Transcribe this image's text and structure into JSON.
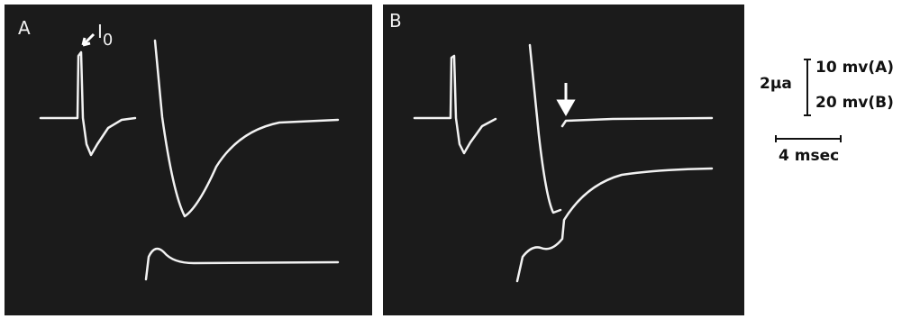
{
  "panels": [
    {
      "label": "A",
      "annotation": {
        "text": "I",
        "subscript": "0"
      }
    },
    {
      "label": "B"
    }
  ],
  "scale": {
    "current": "2μa",
    "voltage": [
      "10 mv(A)",
      "20 mv(B)"
    ],
    "time": "4 msec"
  }
}
